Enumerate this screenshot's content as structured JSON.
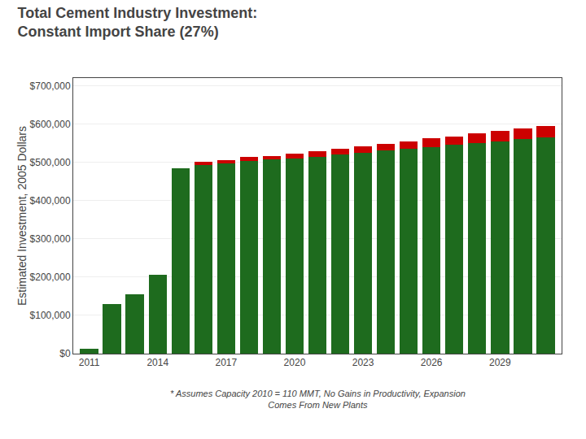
{
  "chart_data": {
    "type": "bar",
    "title": "Total Cement Industry Investment:",
    "subtitle": "Constant Import Share (27%)",
    "y_label": "Estimated Investment, 2005 Dollars",
    "annotations": [
      "* Assumes Capacity 2010 = 110 MMT, No Gains in Productivity, Expansion\nComes From New Plants"
    ],
    "stacked": true,
    "grid": true,
    "x": [
      2011,
      2012,
      2013,
      2014,
      2015,
      2016,
      2017,
      2018,
      2019,
      2020,
      2021,
      2022,
      2023,
      2024,
      2025,
      2026,
      2027,
      2028,
      2029,
      2030,
      2031
    ],
    "series": [
      {
        "color": "#1e6b1e",
        "values": [
          12000,
          130000,
          155000,
          207000,
          485000,
          493000,
          497000,
          503000,
          507000,
          510000,
          515000,
          520000,
          525000,
          530000,
          535000,
          540000,
          545000,
          550000,
          555000,
          560000,
          565000
        ]
      },
      {
        "color": "#cc0000",
        "values": [
          0,
          0,
          0,
          0,
          0,
          8000,
          8000,
          10000,
          10000,
          12000,
          13000,
          15000,
          17000,
          18000,
          20000,
          22000,
          23000,
          25000,
          27000,
          28000,
          30000
        ]
      }
    ],
    "xlim": [
      2010.3,
      2031.7
    ],
    "xticks": [
      2011,
      2014,
      2017,
      2020,
      2023,
      2026,
      2029
    ],
    "ylim": [
      0,
      720000
    ],
    "yticks": [
      {
        "value": 0,
        "label": "$0"
      },
      {
        "value": 100000,
        "label": "$100,000"
      },
      {
        "value": 200000,
        "label": "$200,000"
      },
      {
        "value": 300000,
        "label": "$300,000"
      },
      {
        "value": 400000,
        "label": "$400,000"
      },
      {
        "value": 500000,
        "label": "$500,000"
      },
      {
        "value": 600000,
        "label": "$600,000"
      },
      {
        "value": 700000,
        "label": "$700,000"
      }
    ]
  }
}
